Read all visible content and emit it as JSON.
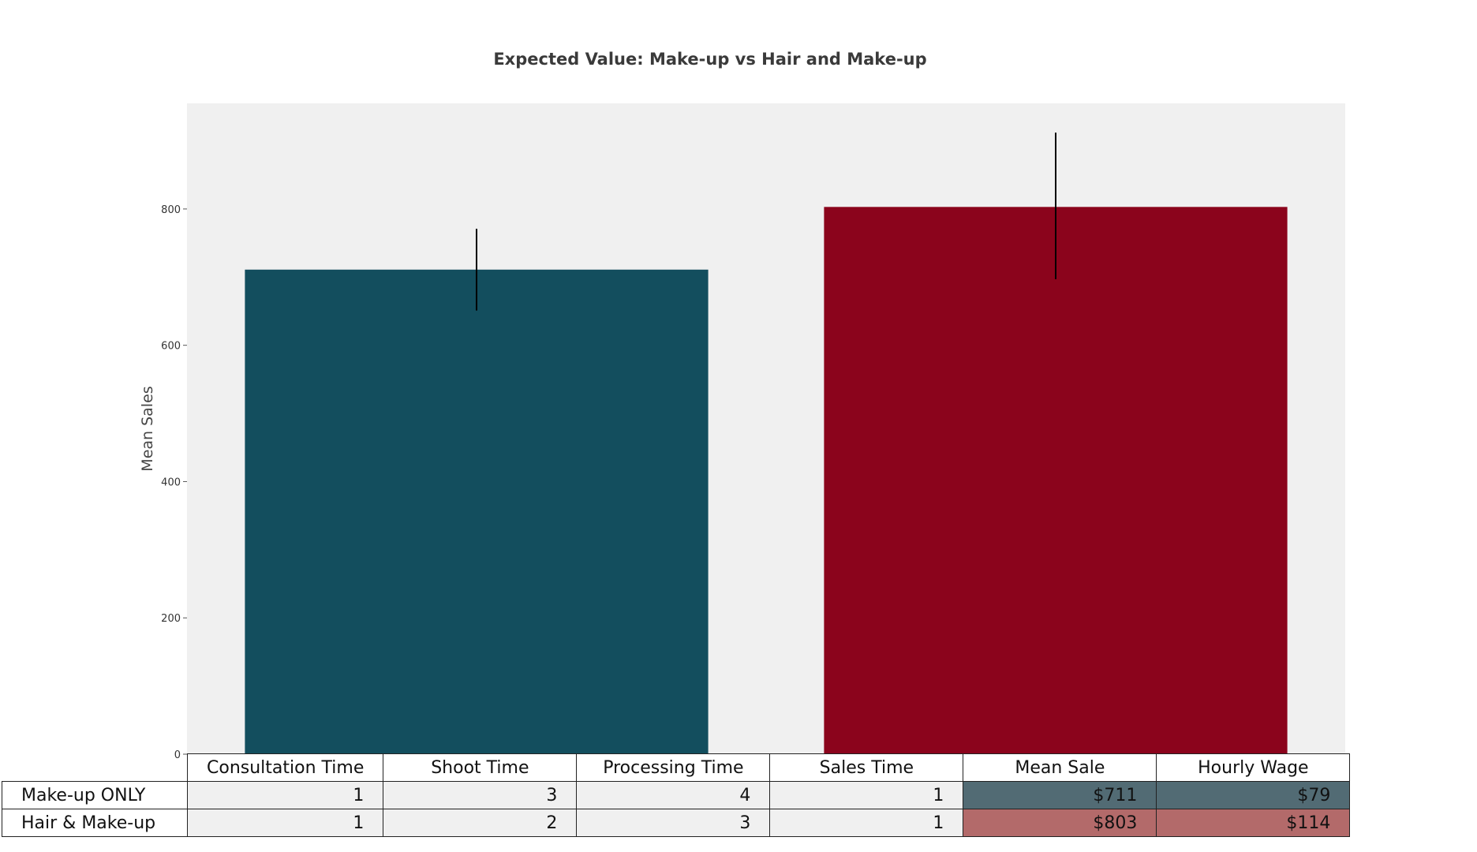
{
  "chart_data": {
    "type": "bar",
    "title": "Expected Value: Make-up vs Hair and Make-up",
    "ylabel": "Mean Sales",
    "xlabel": "",
    "ylim": [
      0,
      955
    ],
    "yticks": [
      0,
      200,
      400,
      600,
      800
    ],
    "grid": false,
    "categories": [
      "Make-up ONLY",
      "Hair & Make-up"
    ],
    "values": [
      711,
      803
    ],
    "error_low": [
      651,
      697
    ],
    "error_high": [
      771,
      912
    ],
    "colors": [
      "#134e5e",
      "#8b041c"
    ],
    "background": "#f0f0f0"
  },
  "table": {
    "columns": [
      "Consultation Time",
      "Shoot Time",
      "Processing Time",
      "Sales Time",
      "Mean Sale",
      "Hourly Wage"
    ],
    "rows": [
      {
        "label": "Make-up ONLY",
        "cells": [
          "1",
          "3",
          "4",
          "1",
          "$711",
          "$79"
        ],
        "highlight": "#526b74"
      },
      {
        "label": "Hair & Make-up",
        "cells": [
          "1",
          "2",
          "3",
          "1",
          "$803",
          "$114"
        ],
        "highlight": "#b36a6a"
      }
    ]
  }
}
